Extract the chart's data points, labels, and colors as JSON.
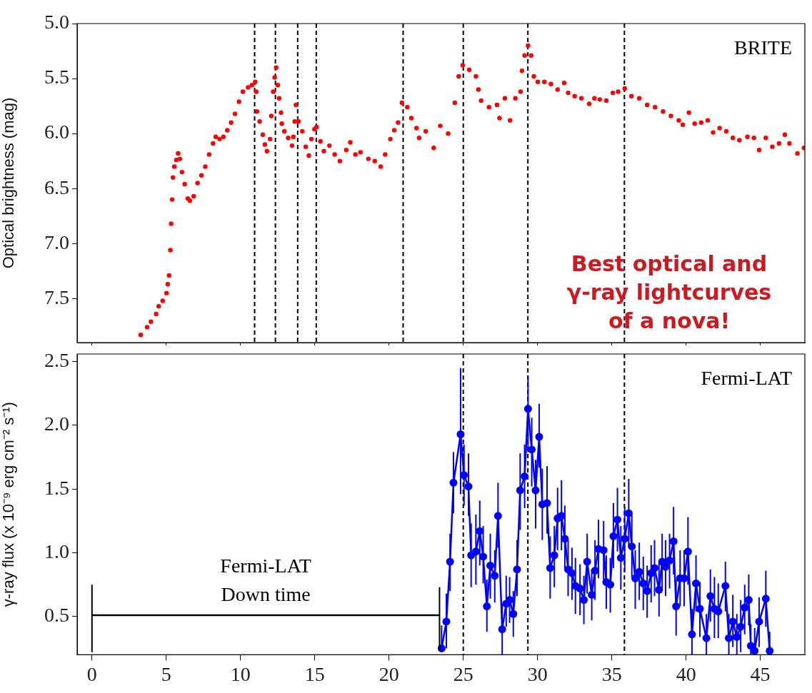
{
  "chart_data": [
    {
      "type": "scatter",
      "ylabel": "Optical brightness (mag)",
      "xlim": [
        -1,
        48
      ],
      "xticks": [
        0,
        5,
        10,
        15,
        20,
        25,
        30,
        35,
        40,
        45
      ],
      "ylim": [
        7.9,
        5.0
      ],
      "yticks": [
        {
          "value": 5,
          "label": "5.0"
        },
        {
          "value": 5.5,
          "label": "5.5"
        },
        {
          "value": 6,
          "label": "6.0"
        },
        {
          "value": 6.5,
          "label": "6.5"
        },
        {
          "value": 7,
          "label": "7.0"
        },
        {
          "value": 7.5,
          "label": "7.5"
        }
      ],
      "tick_labels": "y",
      "grid": false,
      "legend": false,
      "marker": "circle",
      "annotations": [
        "BRITE",
        "Best optical and γ-ray lightcurves of a nova!"
      ],
      "ref_lines": [
        {
          "axis": "x",
          "value": 10.95,
          "color": "#000000",
          "line_style": "dashed"
        },
        {
          "axis": "x",
          "value": 12.35,
          "color": "#000000",
          "line_style": "dashed"
        },
        {
          "axis": "x",
          "value": 13.85,
          "color": "#000000",
          "line_style": "dashed"
        },
        {
          "axis": "x",
          "value": 15.1,
          "color": "#000000",
          "line_style": "dashed"
        },
        {
          "axis": "x",
          "value": 20.95,
          "color": "#000000",
          "line_style": "dashed"
        },
        {
          "axis": "x",
          "value": 25.0,
          "color": "#000000",
          "line_style": "dashed"
        },
        {
          "axis": "x",
          "value": 29.35,
          "color": "#000000",
          "line_style": "dashed"
        },
        {
          "axis": "x",
          "value": 35.85,
          "color": "#000000",
          "line_style": "dashed"
        }
      ],
      "series": [
        {
          "color": "#ff0000",
          "x": [
            3.28,
            3.71,
            3.97,
            4.32,
            4.49,
            4.76,
            5.02,
            5.1,
            5.19,
            5.28,
            5.33,
            5.4,
            5.45,
            5.54,
            5.68,
            5.8,
            5.92,
            6.06,
            6.24,
            6.45,
            6.59,
            6.85,
            7.11,
            7.37,
            7.63,
            7.89,
            8.15,
            8.33,
            8.59,
            8.85,
            9.11,
            9.37,
            9.63,
            9.9,
            10.16,
            10.51,
            10.77,
            10.99,
            11.06,
            11.11,
            11.29,
            11.5,
            11.64,
            11.78,
            11.99,
            12.07,
            12.2,
            12.3,
            12.4,
            12.51,
            12.6,
            12.73,
            12.78,
            12.95,
            13.21,
            13.47,
            13.56,
            13.65,
            13.73,
            13.9,
            14.16,
            14.39,
            14.6,
            14.77,
            14.98,
            15.12,
            15.38,
            15.61,
            15.99,
            16.34,
            16.69,
            17.12,
            17.39,
            17.74,
            18.08,
            18.61,
            19.04,
            19.44,
            19.74,
            20.09,
            20.35,
            20.61,
            20.87,
            21.23,
            21.5,
            21.85,
            22.03,
            22.47,
            23.01,
            23.45,
            23.98,
            24.43,
            24.69,
            24.96,
            25.4,
            25.85,
            26.02,
            26.2,
            26.73,
            27.27,
            27.44,
            27.8,
            28.15,
            28.51,
            28.86,
            28.95,
            29.13,
            29.36,
            29.57,
            29.75,
            30.02,
            30.46,
            30.9,
            31.35,
            31.79,
            32.06,
            32.5,
            32.95,
            33.48,
            33.83,
            34.19,
            34.63,
            35.07,
            35.43,
            35.87,
            36.32,
            36.85,
            37.38,
            37.91,
            38.45,
            38.98,
            39.51,
            39.78,
            40.19,
            40.58,
            41.02,
            41.46,
            41.82,
            42.26,
            42.71,
            43.15,
            43.59,
            44.13,
            44.57,
            44.92,
            45.37,
            45.81,
            46.26,
            46.65,
            46.96,
            47.5,
            47.94
          ],
          "values": [
            7.83,
            7.76,
            7.71,
            7.64,
            7.57,
            7.52,
            7.45,
            7.37,
            7.29,
            7.06,
            6.82,
            6.6,
            6.4,
            6.3,
            6.24,
            6.18,
            6.23,
            6.35,
            6.46,
            6.59,
            6.61,
            6.57,
            6.45,
            6.38,
            6.3,
            6.19,
            6.09,
            6.03,
            6.05,
            6.03,
            5.97,
            5.9,
            5.82,
            5.71,
            5.62,
            5.58,
            5.56,
            5.53,
            5.62,
            5.8,
            5.89,
            6.01,
            6.1,
            6.16,
            6.05,
            5.84,
            5.62,
            5.49,
            5.4,
            5.56,
            5.68,
            5.81,
            5.91,
            5.98,
            6.04,
            6.11,
            6.03,
            5.89,
            5.74,
            5.89,
            5.98,
            6.12,
            6.2,
            6.05,
            5.96,
            5.94,
            6.07,
            6.16,
            6.11,
            6.19,
            6.25,
            6.15,
            6.08,
            6.19,
            6.17,
            6.23,
            6.25,
            6.3,
            6.19,
            6.05,
            5.97,
            5.9,
            5.72,
            5.76,
            5.86,
            5.95,
            6.04,
            5.98,
            6.13,
            5.93,
            6.0,
            5.72,
            5.48,
            5.38,
            5.42,
            5.48,
            5.6,
            5.7,
            5.76,
            5.74,
            5.86,
            5.68,
            5.88,
            5.68,
            5.62,
            5.43,
            5.29,
            5.2,
            5.29,
            5.48,
            5.53,
            5.53,
            5.55,
            5.6,
            5.54,
            5.63,
            5.66,
            5.68,
            5.73,
            5.68,
            5.69,
            5.7,
            5.63,
            5.62,
            5.59,
            5.66,
            5.68,
            5.74,
            5.76,
            5.8,
            5.84,
            5.88,
            5.92,
            5.81,
            5.91,
            5.9,
            5.88,
            5.99,
            5.95,
            5.98,
            6.04,
            6.06,
            6.03,
            6.04,
            6.15,
            6.04,
            6.12,
            6.09,
            6.01,
            6.09,
            6.18,
            6.13
          ]
        }
      ]
    },
    {
      "type": "line",
      "ylabel": "γ-ray flux (x 10⁻⁹ erg cm⁻² s⁻¹)",
      "xlim": [
        -1,
        48
      ],
      "xticks": [
        0,
        5,
        10,
        15,
        20,
        25,
        30,
        35,
        40,
        45
      ],
      "ylim": [
        0.2,
        2.56
      ],
      "yticks": [
        {
          "value": 0.5,
          "label": "0.5"
        },
        {
          "value": 1,
          "label": "1.0"
        },
        {
          "value": 1.5,
          "label": "1.5"
        },
        {
          "value": 2,
          "label": "2.0"
        },
        {
          "value": 2.5,
          "label": "2.5"
        }
      ],
      "grid": false,
      "legend": false,
      "marker": "circle",
      "line_style": "solid",
      "annotations": [
        "Fermi-LAT",
        {
          "text": "Fermi-LAT Down time",
          "x": 11.7,
          "y": 0.51
        }
      ],
      "ref_lines": [
        {
          "axis": "x",
          "value": 25.0,
          "color": "#000000",
          "line_style": "dashed"
        },
        {
          "axis": "x",
          "value": 29.35,
          "color": "#000000",
          "line_style": "dashed"
        },
        {
          "axis": "x",
          "value": 35.85,
          "color": "#000000",
          "line_style": "dashed"
        }
      ],
      "series": [
        {
          "color": "#000000",
          "marker": "none",
          "x": [
            0,
            23.4
          ],
          "values": [
            0.51,
            0.51
          ],
          "errors": [
            [
              0.22,
              0.75
            ],
            [
              0.23,
              0.73
            ]
          ]
        },
        {
          "color": "#0000ff",
          "x": [
            23.54,
            23.86,
            24.11,
            24.34,
            24.82,
            25.05,
            25.35,
            25.53,
            25.85,
            26.11,
            26.34,
            26.59,
            26.82,
            27.12,
            27.34,
            27.62,
            27.89,
            28.12,
            28.37,
            28.62,
            28.83,
            29.13,
            29.36,
            29.61,
            29.87,
            30.11,
            30.32,
            30.64,
            30.85,
            31.13,
            31.35,
            31.61,
            31.84,
            32.06,
            32.32,
            32.55,
            32.86,
            33.12,
            33.34,
            33.65,
            33.87,
            34.1,
            34.45,
            34.63,
            34.9,
            35.11,
            35.38,
            35.61,
            35.87,
            36.14,
            36.35,
            36.58,
            36.85,
            37.12,
            37.38,
            37.65,
            37.88,
            38.18,
            38.39,
            38.62,
            38.89,
            39.16,
            39.33,
            39.6,
            39.87,
            40.13,
            40.4,
            40.67,
            40.93,
            41.37,
            41.64,
            41.91,
            42.17,
            42.65,
            42.88,
            43.15,
            43.42,
            43.68,
            43.95,
            44.22,
            44.36,
            44.62,
            44.92,
            45.37,
            45.63
          ],
          "values": [
            0.25,
            0.46,
            0.93,
            1.55,
            1.93,
            1.61,
            1.52,
            0.98,
            1.01,
            1.17,
            0.97,
            0.58,
            0.9,
            0.82,
            1.29,
            0.4,
            0.6,
            0.63,
            0.52,
            0.87,
            1.49,
            1.6,
            2.13,
            1.81,
            1.49,
            1.91,
            1.38,
            1.39,
            0.88,
            0.98,
            1.27,
            1.29,
            1.11,
            0.87,
            0.84,
            0.74,
            0.72,
            0.63,
            0.93,
            0.67,
            0.86,
            1.03,
            1.02,
            0.77,
            0.75,
            1.13,
            1.26,
            0.96,
            1.11,
            1.31,
            1.05,
            0.8,
            0.85,
            0.76,
            0.7,
            0.84,
            0.88,
            0.71,
            0.93,
            0.89,
            0.94,
            1.09,
            0.58,
            0.8,
            0.8,
            1.01,
            0.36,
            0.76,
            0.56,
            0.33,
            0.66,
            0.56,
            0.54,
            0.74,
            0.33,
            0.46,
            0.34,
            0.42,
            0.57,
            0.63,
            0.27,
            0.23,
            0.46,
            0.64,
            0.23
          ],
          "errors": [
            [
              0.22,
              0.43
            ],
            [
              0.25,
              0.68
            ],
            [
              0.7,
              1.15
            ],
            [
              1.31,
              1.79
            ],
            [
              1.46,
              2.45
            ],
            [
              1.37,
              1.85
            ],
            [
              1.29,
              1.78
            ],
            [
              0.73,
              1.23
            ],
            [
              0.75,
              1.3
            ],
            [
              0.9,
              1.41
            ],
            [
              0.76,
              1.21
            ],
            [
              0.38,
              0.79
            ],
            [
              0.64,
              1.15
            ],
            [
              0.61,
              1.02
            ],
            [
              1.04,
              1.55
            ],
            [
              0.2,
              0.6
            ],
            [
              0.42,
              0.82
            ],
            [
              0.45,
              0.81
            ],
            [
              0.34,
              0.7
            ],
            [
              0.66,
              1.1
            ],
            [
              1.18,
              1.78
            ],
            [
              1.35,
              1.85
            ],
            [
              1.79,
              2.39
            ],
            [
              1.52,
              2.06
            ],
            [
              1.19,
              1.73
            ],
            [
              1.67,
              2.17
            ],
            [
              1.1,
              1.66
            ],
            [
              1.15,
              1.68
            ],
            [
              0.64,
              1.13
            ],
            [
              0.73,
              1.21
            ],
            [
              1.02,
              1.51
            ],
            [
              1.02,
              1.57
            ],
            [
              0.87,
              1.37
            ],
            [
              0.66,
              1.1
            ],
            [
              0.63,
              1.04
            ],
            [
              0.52,
              0.96
            ],
            [
              0.51,
              0.91
            ],
            [
              0.44,
              0.82
            ],
            [
              0.68,
              1.15
            ],
            [
              0.47,
              0.87
            ],
            [
              0.63,
              1.1
            ],
            [
              0.8,
              1.26
            ],
            [
              0.79,
              1.25
            ],
            [
              0.56,
              0.98
            ],
            [
              0.53,
              0.96
            ],
            [
              0.88,
              1.39
            ],
            [
              1.01,
              1.51
            ],
            [
              0.71,
              1.21
            ],
            [
              0.85,
              1.36
            ],
            [
              1.05,
              1.58
            ],
            [
              0.81,
              1.3
            ],
            [
              0.56,
              1.02
            ],
            [
              0.63,
              1.08
            ],
            [
              0.55,
              0.97
            ],
            [
              0.49,
              0.9
            ],
            [
              0.61,
              1.06
            ],
            [
              0.66,
              1.1
            ],
            [
              0.5,
              0.92
            ],
            [
              0.71,
              1.15
            ],
            [
              0.66,
              1.1
            ],
            [
              0.72,
              1.15
            ],
            [
              0.83,
              1.36
            ],
            [
              0.35,
              0.79
            ],
            [
              0.58,
              1.02
            ],
            [
              0.58,
              1.02
            ],
            [
              0.75,
              1.28
            ],
            [
              0.2,
              0.56
            ],
            [
              0.54,
              0.98
            ],
            [
              0.34,
              0.77
            ],
            [
              0.2,
              0.52
            ],
            [
              0.46,
              0.87
            ],
            [
              0.33,
              0.81
            ],
            [
              0.33,
              0.76
            ],
            [
              0.54,
              0.93
            ],
            [
              0.2,
              0.52
            ],
            [
              0.26,
              0.67
            ],
            [
              0.2,
              0.52
            ],
            [
              0.22,
              0.63
            ],
            [
              0.36,
              0.75
            ],
            [
              0.43,
              0.83
            ],
            [
              0.2,
              0.44
            ],
            [
              0.2,
              0.41
            ],
            [
              0.26,
              0.65
            ],
            [
              0.42,
              0.86
            ],
            [
              0.2,
              0.38
            ]
          ]
        }
      ]
    }
  ]
}
